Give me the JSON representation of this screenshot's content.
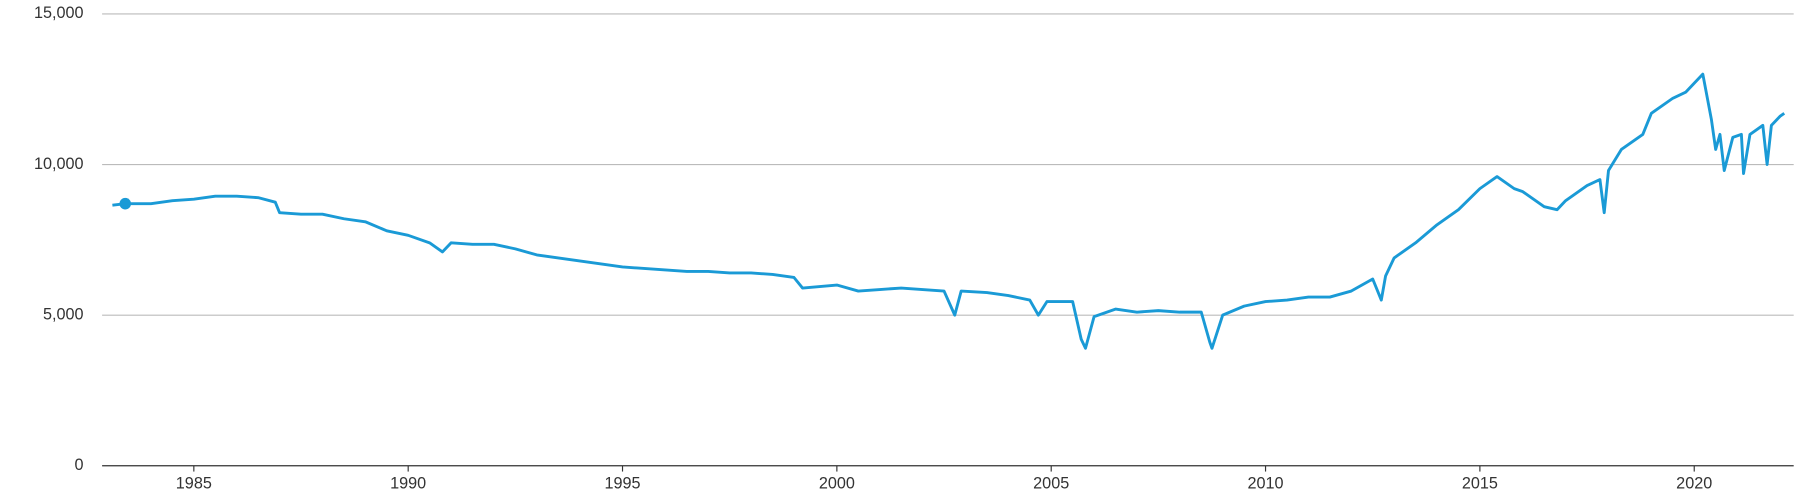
{
  "chart_data": {
    "type": "line",
    "x": [
      1983.1,
      1983.4,
      1984,
      1984.5,
      1985,
      1985.5,
      1986,
      1986.5,
      1986.9,
      1987,
      1987.5,
      1988,
      1988.5,
      1989,
      1989.5,
      1990,
      1990.5,
      1990.8,
      1991,
      1991.5,
      1992,
      1992.5,
      1993,
      1993.5,
      1994,
      1994.5,
      1995,
      1995.5,
      1996,
      1996.5,
      1997,
      1997.5,
      1998,
      1998.5,
      1999,
      1999.2,
      2000,
      2000.5,
      2001,
      2001.5,
      2002,
      2002.5,
      2002.75,
      2002.9,
      2003.5,
      2004,
      2004.5,
      2004.7,
      2004.9,
      2005.5,
      2005.7,
      2005.8,
      2006,
      2006.5,
      2007,
      2007.5,
      2008,
      2008.5,
      2008.7,
      2008.75,
      2009,
      2009.5,
      2010,
      2010.5,
      2011,
      2011.5,
      2012,
      2012.5,
      2012.7,
      2012.8,
      2013,
      2013.5,
      2014,
      2014.5,
      2015,
      2015.4,
      2015.8,
      2016,
      2016.5,
      2016.8,
      2017,
      2017.5,
      2017.8,
      2017.9,
      2018,
      2018.3,
      2018.8,
      2019,
      2019.5,
      2019.8,
      2020.2,
      2020.4,
      2020.5,
      2020.6,
      2020.7,
      2020.9,
      2021.1,
      2021.15,
      2021.3,
      2021.6,
      2021.7,
      2021.8,
      2022,
      2022.1
    ],
    "series": [
      {
        "color": "#1a9ad6",
        "values": [
          8650,
          8700,
          8700,
          8800,
          8850,
          8950,
          8950,
          8900,
          8750,
          8400,
          8350,
          8350,
          8200,
          8100,
          7800,
          7650,
          7400,
          7100,
          7400,
          7350,
          7350,
          7200,
          7000,
          6900,
          6800,
          6700,
          6600,
          6550,
          6500,
          6450,
          6450,
          6400,
          6400,
          6350,
          6250,
          5900,
          6000,
          5800,
          5850,
          5900,
          5850,
          5800,
          5000,
          5800,
          5750,
          5650,
          5500,
          5000,
          5450,
          5450,
          4200,
          3900,
          4950,
          5200,
          5100,
          5150,
          5100,
          5100,
          4100,
          3900,
          5000,
          5300,
          5450,
          5500,
          5600,
          5600,
          5800,
          6200,
          5500,
          6300,
          6900,
          7400,
          8000,
          8500,
          9200,
          9600,
          9200,
          9100,
          8600,
          8500,
          8800,
          9300,
          9500,
          8400,
          9800,
          10500,
          11000,
          11700,
          12200,
          12400,
          13000,
          11500,
          10500,
          11000,
          9800,
          10900,
          11000,
          9700,
          11000,
          11300,
          10000,
          11300,
          11600,
          11700
        ]
      }
    ],
    "highlight": {
      "x": 1983.4,
      "value": 8700
    },
    "xlim": [
      1982.86,
      2022.32
    ],
    "xticks": [
      1985,
      1990,
      1995,
      2000,
      2005,
      2010,
      2015,
      2020
    ],
    "ylim": [
      0,
      15000
    ],
    "yticks": [
      0,
      {
        "value": 5000,
        "label": "5,000"
      },
      {
        "value": 10000,
        "label": "10,000"
      },
      {
        "value": 15000,
        "label": "15,000"
      }
    ],
    "grid": true
  }
}
